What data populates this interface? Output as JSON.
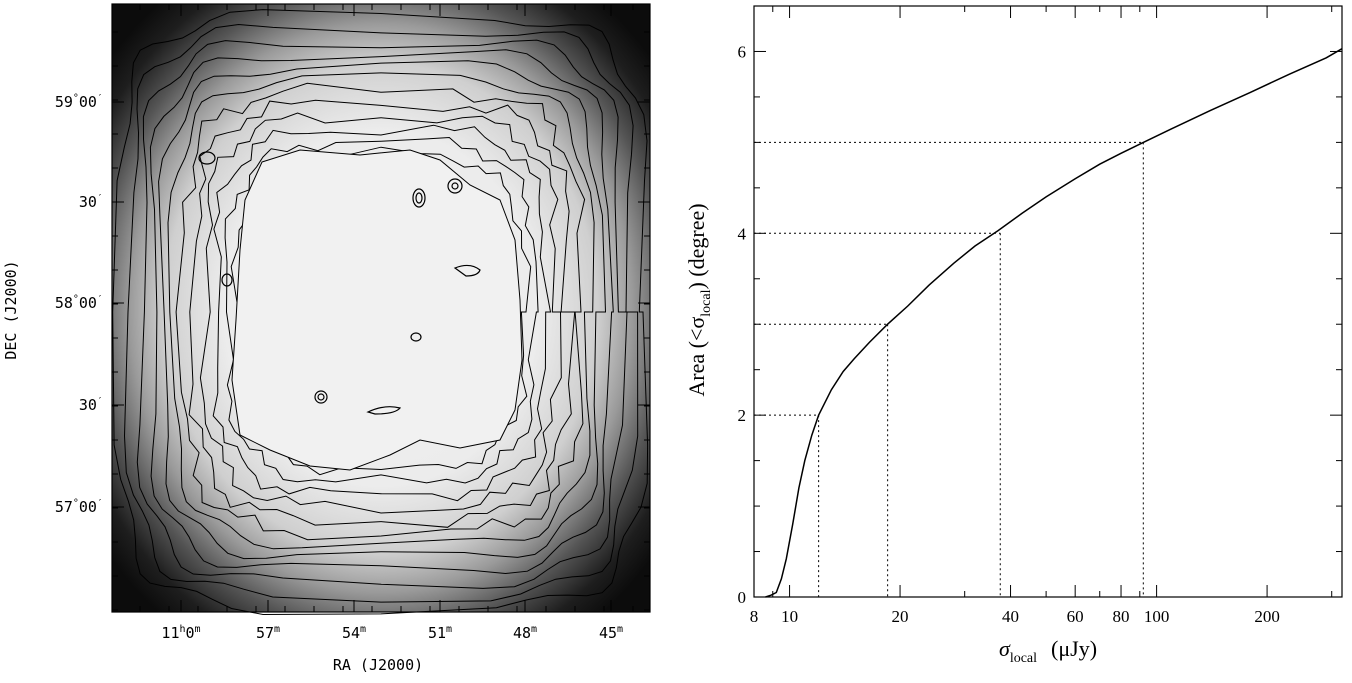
{
  "map_panel": {
    "ra_axis": {
      "label": "RA (J2000)",
      "ticks": [
        {
          "h": "11",
          "hs": "h",
          "m": "0",
          "ms": "m"
        },
        {
          "h": "",
          "hs": "",
          "m": "57",
          "ms": "m"
        },
        {
          "h": "",
          "hs": "",
          "m": "54",
          "ms": "m"
        },
        {
          "h": "",
          "hs": "",
          "m": "51",
          "ms": "m"
        },
        {
          "h": "",
          "hs": "",
          "m": "48",
          "ms": "m"
        },
        {
          "h": "",
          "hs": "",
          "m": "45",
          "ms": "m"
        }
      ]
    },
    "dec_axis": {
      "label": "DEC (J2000)",
      "ticks": [
        {
          "d": "59",
          "ds": "°",
          "m": "00",
          "ms": "′"
        },
        {
          "d": "",
          "ds": "",
          "m": "30",
          "ms": "′"
        },
        {
          "d": "58",
          "ds": "°",
          "m": "00",
          "ms": "′"
        },
        {
          "d": "",
          "ds": "",
          "m": "30",
          "ms": "′"
        },
        {
          "d": "57",
          "ds": "°",
          "m": "00",
          "ms": "′"
        }
      ]
    },
    "colors": {
      "outer": "#111111",
      "inner": "#efefef",
      "contour": "#000000"
    }
  },
  "chart_data": {
    "type": "line",
    "title": "",
    "xlabel": {
      "sym": "σ",
      "sub": "local",
      "unit": "(μJy)"
    },
    "ylabel": {
      "prefix": "Area (<σ",
      "sub": "local",
      "suffix": ") (degree)"
    },
    "x_scale": "log",
    "xlim": [
      8,
      320
    ],
    "ylim": [
      0,
      6.5
    ],
    "x_ticks": [
      8,
      10,
      20,
      40,
      60,
      80,
      100,
      200
    ],
    "x_tick_labels": [
      "8",
      "10",
      "20",
      "40",
      "60",
      "80",
      "100",
      "200"
    ],
    "y_ticks": [
      0,
      2,
      4,
      6
    ],
    "y_tick_labels": [
      "0",
      "2",
      "4",
      "6"
    ],
    "series": [
      {
        "x": [
          8.6,
          8.9,
          9.2,
          9.5,
          9.8,
          10.2,
          10.6,
          11.0,
          11.5,
          12.0,
          13.0,
          14.0,
          15.0,
          16.5,
          18.5,
          21,
          24,
          28,
          32,
          37,
          43,
          50,
          60,
          70,
          80,
          92,
          110,
          140,
          180,
          230,
          290,
          320
        ],
        "y": [
          0.0,
          0.02,
          0.05,
          0.2,
          0.42,
          0.8,
          1.2,
          1.5,
          1.78,
          2.0,
          2.28,
          2.48,
          2.62,
          2.8,
          3.0,
          3.2,
          3.43,
          3.67,
          3.86,
          4.03,
          4.22,
          4.4,
          4.6,
          4.76,
          4.88,
          5.0,
          5.15,
          5.35,
          5.55,
          5.75,
          5.93,
          6.03
        ]
      }
    ],
    "reference_lines": [
      {
        "x": 12.0,
        "y": 2
      },
      {
        "x": 18.5,
        "y": 3
      },
      {
        "x": 37.5,
        "y": 4
      },
      {
        "x": 92,
        "y": 5
      }
    ],
    "grid": false,
    "legend": "none"
  }
}
